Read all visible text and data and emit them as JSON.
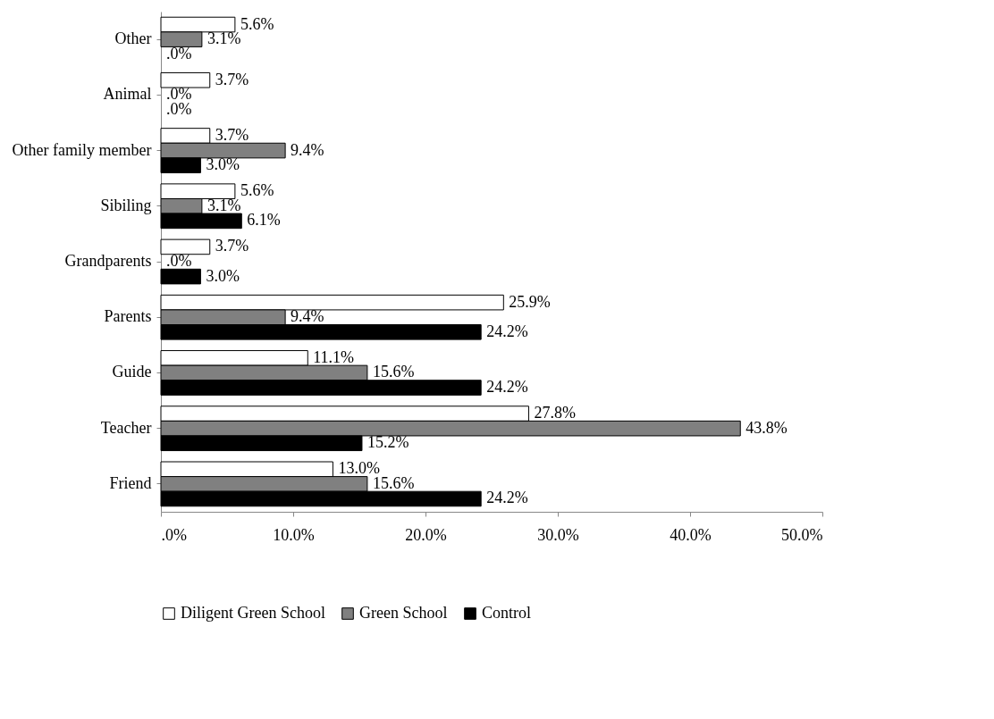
{
  "chart_data": {
    "type": "bar",
    "orientation": "horizontal",
    "categories": [
      "Other",
      "Animal",
      "Other family member",
      "Sibiling",
      "Grandparents",
      "Parents",
      "Guide",
      "Teacher",
      "Friend"
    ],
    "series": [
      {
        "name": "Diligent Green School",
        "color": "#ffffff",
        "values": [
          5.6,
          3.7,
          3.7,
          5.6,
          3.7,
          25.9,
          11.1,
          27.8,
          13.0
        ],
        "value_labels": [
          "5.6%",
          "3.7%",
          "3.7%",
          "5.6%",
          "3.7%",
          "25.9%",
          "11.1%",
          "27.8%",
          "13.0%"
        ]
      },
      {
        "name": "Green School",
        "color": "#808080",
        "values": [
          3.1,
          0,
          9.4,
          3.1,
          0,
          9.4,
          15.6,
          43.8,
          15.6
        ],
        "value_labels": [
          "3.1%",
          ".0%",
          "9.4%",
          "3.1%",
          ".0%",
          "9.4%",
          "15.6%",
          "43.8%",
          "15.6%"
        ]
      },
      {
        "name": "Control",
        "color": "#000000",
        "values": [
          0,
          0,
          3.0,
          6.1,
          3.0,
          24.2,
          24.2,
          15.2,
          24.2
        ],
        "value_labels": [
          ".0%",
          ".0%",
          "3.0%",
          "6.1%",
          "3.0%",
          "24.2%",
          "24.2%",
          "15.2%",
          "24.2%"
        ]
      }
    ],
    "xlim": [
      0,
      50
    ],
    "xticks": [
      {
        "value": 0,
        "label": ".0%"
      },
      {
        "value": 10,
        "label": "10.0%"
      },
      {
        "value": 20,
        "label": "20.0%"
      },
      {
        "value": 30,
        "label": "30.0%"
      },
      {
        "value": 40,
        "label": "40.0%"
      },
      {
        "value": 50,
        "label": "50.0%"
      }
    ],
    "grid": false,
    "legend": "bottom"
  }
}
